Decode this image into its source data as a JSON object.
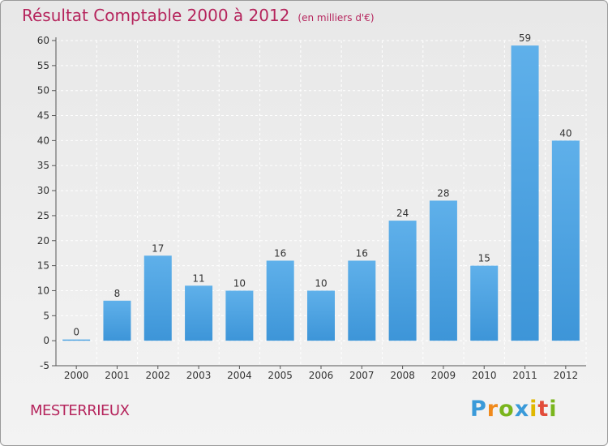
{
  "title": "Résultat Comptable 2000 à 2012",
  "unit": "(en milliers d'€)",
  "commune": "MESTERRIEUX",
  "logo": {
    "letters": [
      "P",
      "r",
      "o",
      "x",
      "i",
      "t",
      "i"
    ],
    "colors": [
      "#3a9ad9",
      "#f08a1c",
      "#7ab51d",
      "#3a9ad9",
      "#e0b800",
      "#e24c3a",
      "#7ab51d"
    ]
  },
  "colors": {
    "bar": "#3d95d8",
    "bar_light": "#5fb0ea",
    "accent": "#b5245c"
  },
  "chart_data": {
    "type": "bar",
    "categories": [
      "2000",
      "2001",
      "2002",
      "2003",
      "2004",
      "2005",
      "2006",
      "2007",
      "2008",
      "2009",
      "2010",
      "2011",
      "2012"
    ],
    "values": [
      0,
      8,
      17,
      11,
      10,
      16,
      10,
      16,
      24,
      28,
      15,
      59,
      40
    ],
    "data_labels": [
      "0",
      "8",
      "17",
      "11",
      "10",
      "16",
      "10",
      "16",
      "24",
      "28",
      "15",
      "59",
      "40"
    ],
    "yticks": [
      "-5",
      "0",
      "5",
      "10",
      "15",
      "20",
      "25",
      "30",
      "35",
      "40",
      "45",
      "50",
      "55",
      "60"
    ],
    "ylim": [
      -5,
      60
    ],
    "grid": true,
    "legend": "none"
  }
}
